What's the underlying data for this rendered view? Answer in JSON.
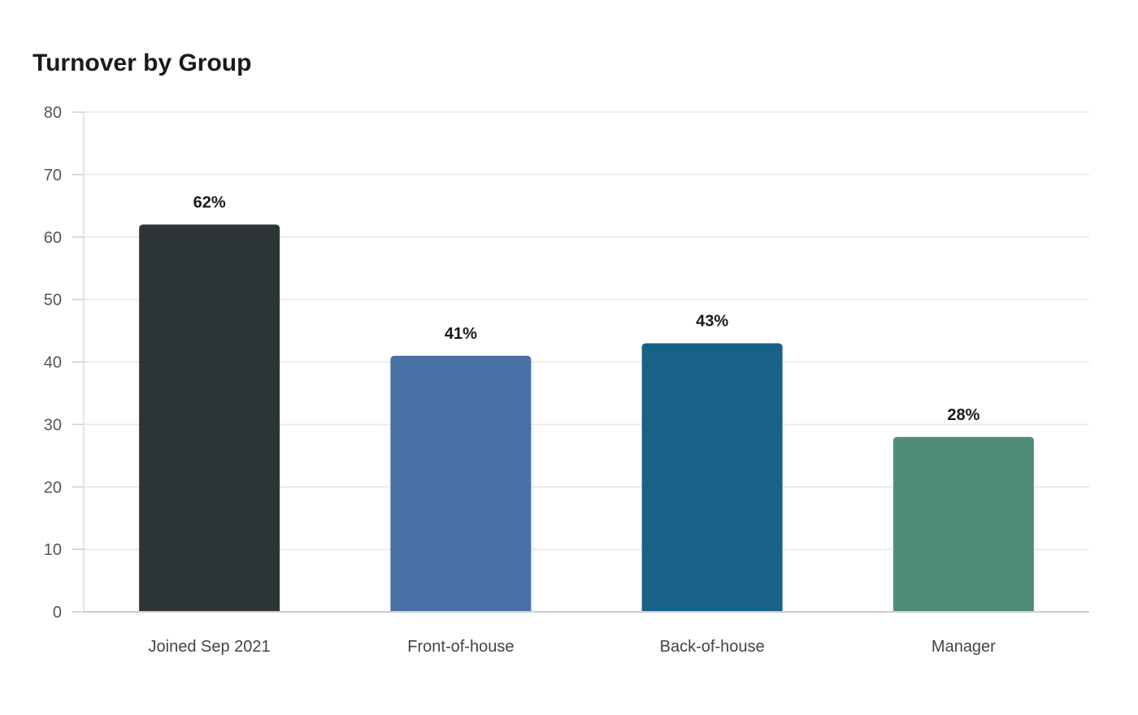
{
  "chart_data": {
    "type": "bar",
    "title": "Turnover by Group",
    "xlabel": "",
    "ylabel": "",
    "ylim": [
      0,
      80
    ],
    "yticks": [
      0,
      10,
      20,
      30,
      40,
      50,
      60,
      70,
      80
    ],
    "grid": true,
    "categories": [
      "Joined Sep 2021",
      "Front-of-house",
      "Back-of-house",
      "Manager"
    ],
    "values": [
      62,
      41,
      43,
      28
    ],
    "data_labels": [
      "62%",
      "41%",
      "43%",
      "28%"
    ],
    "colors": [
      "#2d3436",
      "#4a6fa5",
      "#186187",
      "#4e8c79"
    ]
  }
}
